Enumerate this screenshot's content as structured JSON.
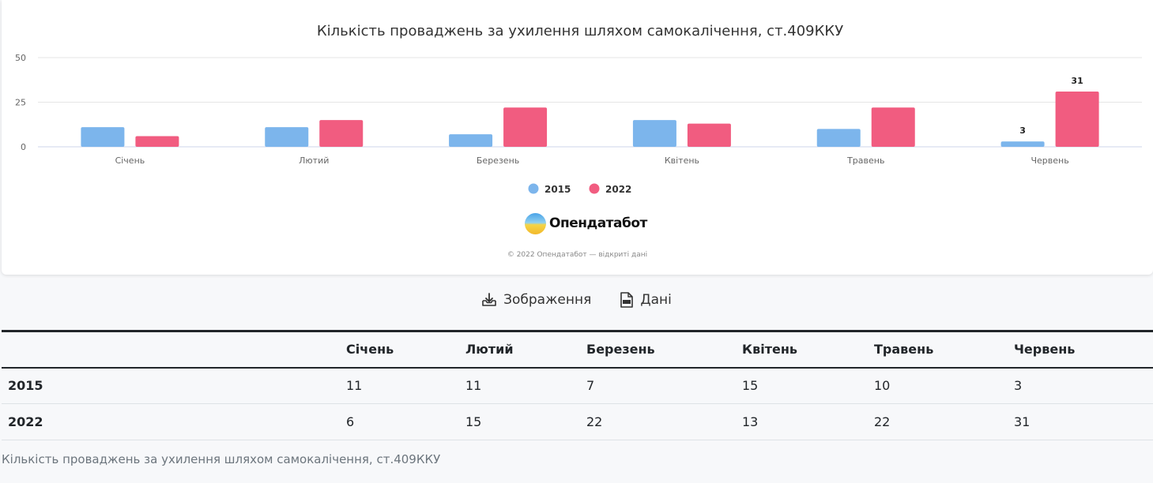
{
  "chart_data": {
    "type": "bar",
    "title": "Кількість проваджень за ухилення шляхом самокалічення, ст.409ККУ",
    "categories": [
      "Січень",
      "Лютий",
      "Березень",
      "Квітень",
      "Травень",
      "Червень"
    ],
    "series": [
      {
        "name": "2015",
        "color": "#7cb5ec",
        "values": [
          11,
          11,
          7,
          15,
          10,
          3
        ]
      },
      {
        "name": "2022",
        "color": "#f15c80",
        "values": [
          6,
          15,
          22,
          13,
          22,
          31
        ]
      }
    ],
    "y_ticks": [
      0,
      25,
      50
    ],
    "ylim": [
      0,
      50
    ],
    "data_labels": [
      {
        "series": 0,
        "index": 5,
        "text": "3"
      },
      {
        "series": 1,
        "index": 5,
        "text": "31"
      }
    ],
    "legend_position": "bottom-center",
    "grid": true
  },
  "brand": {
    "name": "Опендатабот",
    "copyright": "© 2022 Опендатабот — відкриті дані"
  },
  "actions": {
    "image_label": "Зображення",
    "data_label": "Дані"
  },
  "table": {
    "header": [
      "",
      "Січень",
      "Лютий",
      "Березень",
      "Квітень",
      "Травень",
      "Червень"
    ],
    "rows": [
      [
        "2015",
        "11",
        "11",
        "7",
        "15",
        "10",
        "3"
      ],
      [
        "2022",
        "6",
        "15",
        "22",
        "13",
        "22",
        "31"
      ]
    ]
  },
  "caption": "Кількість проваджень за ухилення шляхом самокалічення, ст.409ККУ"
}
